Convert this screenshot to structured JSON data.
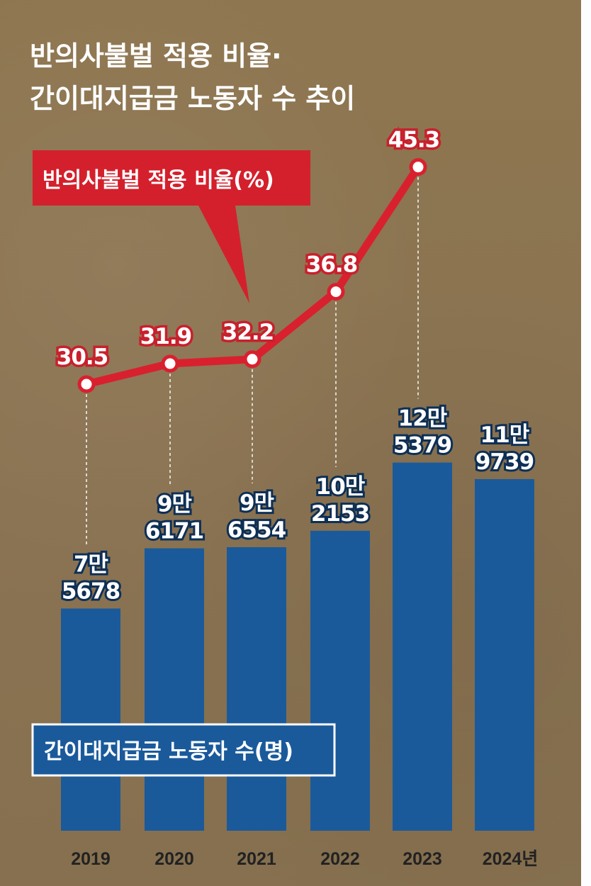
{
  "title": [
    "반의사불벌 적용 비율·",
    "간이대지급금 노동자 수 추이"
  ],
  "chart_data": {
    "type": "bar",
    "categories": [
      "2019",
      "2020",
      "2021",
      "2022",
      "2023",
      "2024년"
    ],
    "series": [
      {
        "name": "간이대지급금 노동자 수(명)",
        "type": "bar",
        "values": [
          75678,
          96171,
          96554,
          102153,
          125379,
          119739
        ],
        "value_labels": [
          [
            "7만",
            "5678"
          ],
          [
            "9만",
            "6171"
          ],
          [
            "9만",
            "6554"
          ],
          [
            "10만",
            "2153"
          ],
          [
            "12만",
            "5379"
          ],
          [
            "11만",
            "9739"
          ]
        ],
        "color": "#1a5a9b"
      },
      {
        "name": "반의사불벌 적용 비율(%)",
        "type": "line",
        "values": [
          30.5,
          31.9,
          32.2,
          36.8,
          45.3,
          null
        ],
        "value_labels": [
          "30.5",
          "31.9",
          "32.2",
          "36.8",
          "45.3",
          ""
        ],
        "color": "#d9202e"
      }
    ],
    "bar_ylim": [
      0,
      160000
    ],
    "line_ylim": [
      20,
      50
    ],
    "grid": false,
    "legend_placement": "inside: line legend top-left, bar legend bottom-left"
  }
}
